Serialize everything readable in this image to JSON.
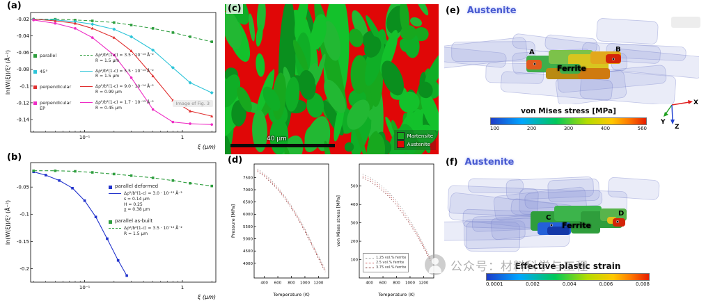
{
  "watermark": {
    "text": "公众号：材料科学与工程"
  },
  "panels": {
    "a": {
      "label": "(a)",
      "overlay_note": "Image of Fig. 3",
      "fits": [
        [
          "Δρ²/b²(1-c) = 3.5 · 10⁻¹⁴ Å⁻²",
          "R = 1.5 μm"
        ],
        [
          "Δρ²/b²(1-c) = 5.5 · 10⁻¹⁴ Å⁻²",
          "R = 1.5 μm"
        ],
        [
          "Δρ²/b²(1-c) = 9.0 · 10⁻¹⁴ Å⁻²",
          "R = 0.99 μm"
        ],
        [
          "Δρ²/b²(1-c) = 1.7 · 10⁻¹³ Å⁻²",
          "R = 0.45 μm"
        ]
      ]
    },
    "b": {
      "label": "(b)",
      "fits": [
        [
          "Δρ²/b²(1-c) = 3.0 · 10⁻¹³ Å⁻²",
          "s = 0.14 μm",
          "H = 0.25",
          "χ = 0.38 μm"
        ],
        [
          "Δρ²/b²(1-c) = 3.5 · 10⁻¹⁴ Å⁻²",
          "R = 1.5 μm"
        ]
      ]
    },
    "c": {
      "label": "(c)",
      "scalebar": "40 μm",
      "legend": [
        {
          "label": "Martensite",
          "color": "#17a81e"
        },
        {
          "label": "Austenite",
          "color": "#e00707"
        }
      ]
    },
    "d": {
      "label": "(d)"
    },
    "e": {
      "label": "(e)",
      "austenite": "Austenite",
      "ferrite": "Ferrite",
      "points": [
        "A",
        "B"
      ],
      "colorbar": {
        "title": "von Mises stress [MPa]",
        "ticks": [
          "100",
          "200",
          "300",
          "400",
          "560"
        ]
      },
      "axes": [
        "X",
        "Y",
        "Z"
      ]
    },
    "f": {
      "label": "(f)",
      "austenite": "Austenite",
      "ferrite": "Ferrite",
      "points": [
        "C",
        "D"
      ],
      "colorbar": {
        "title": "Effective plastic strain",
        "ticks": [
          "0.0001",
          "0.002",
          "0.004",
          "0.006",
          "0.008"
        ]
      }
    }
  },
  "chart_data": [
    {
      "id": "a",
      "type": "scatter",
      "xscale": "log",
      "xlabel": "ξ (μm)",
      "ylabel": "ln(W(ξ))/ξ² (Å⁻²)",
      "xlim": [
        0.028,
        2.2
      ],
      "ylim": [
        -0.155,
        -0.012
      ],
      "xticks": [
        {
          "v": 0.1,
          "label": "10⁻¹"
        },
        {
          "v": 1,
          "label": "1"
        }
      ],
      "yticks": [
        -0.02,
        -0.04,
        -0.06,
        -0.08,
        -0.1,
        -0.12,
        -0.14
      ],
      "x": [
        0.03,
        0.05,
        0.08,
        0.12,
        0.2,
        0.3,
        0.5,
        0.8,
        1.2,
        2.0
      ],
      "series": [
        {
          "name": "parallel",
          "color": "#2e9e3e",
          "dash": "5,3",
          "marker": "square",
          "y": [
            -0.02,
            -0.02,
            -0.021,
            -0.022,
            -0.024,
            -0.027,
            -0.031,
            -0.036,
            -0.041,
            -0.047
          ]
        },
        {
          "name": "45°",
          "color": "#2cc4d8",
          "dash": "",
          "marker": "diamond",
          "y": [
            -0.02,
            -0.021,
            -0.023,
            -0.026,
            -0.032,
            -0.041,
            -0.057,
            -0.078,
            -0.096,
            -0.108
          ]
        },
        {
          "name": "perpendicular",
          "color": "#e03030",
          "dash": "",
          "marker": "triangle",
          "y": [
            -0.02,
            -0.022,
            -0.025,
            -0.031,
            -0.042,
            -0.058,
            -0.088,
            -0.117,
            -0.13,
            -0.136
          ]
        },
        {
          "name": "perpendicular EP",
          "color": "#ee2cc4",
          "dash": "",
          "marker": "circle",
          "y": [
            -0.021,
            -0.025,
            -0.031,
            -0.042,
            -0.063,
            -0.09,
            -0.128,
            -0.143,
            -0.145,
            -0.146
          ]
        }
      ]
    },
    {
      "id": "b",
      "type": "scatter",
      "xscale": "log",
      "xlabel": "ξ (μm)",
      "ylabel": "ln(W(ξ))/ξ² (Å⁻²)",
      "xlim": [
        0.028,
        2.2
      ],
      "ylim": [
        -0.225,
        -0.005
      ],
      "xticks": [
        {
          "v": 0.1,
          "label": "10⁻¹"
        },
        {
          "v": 1,
          "label": "1"
        }
      ],
      "yticks": [
        -0.05,
        -0.1,
        -0.15,
        -0.2
      ],
      "series": [
        {
          "name": "parallel deformed",
          "color": "#2233cc",
          "dash": "",
          "marker": "square",
          "x": [
            0.03,
            0.04,
            0.055,
            0.075,
            0.1,
            0.13,
            0.17,
            0.22,
            0.27
          ],
          "y": [
            -0.022,
            -0.028,
            -0.038,
            -0.052,
            -0.075,
            -0.105,
            -0.145,
            -0.185,
            -0.213
          ]
        },
        {
          "name": "parallel as-built",
          "color": "#2e9e3e",
          "dash": "5,3",
          "marker": "square",
          "x": [
            0.03,
            0.05,
            0.08,
            0.12,
            0.2,
            0.3,
            0.5,
            0.8,
            1.2,
            2.0
          ],
          "y": [
            -0.02,
            -0.02,
            -0.021,
            -0.023,
            -0.026,
            -0.029,
            -0.033,
            -0.038,
            -0.043,
            -0.048
          ]
        }
      ]
    },
    {
      "id": "d_left",
      "type": "line",
      "xscale": "linear",
      "xlabel": "Temperature (K)",
      "ylabel": "Pressure [MPa]",
      "xlim": [
        250,
        1350
      ],
      "ylim": [
        3400,
        8050
      ],
      "xticks": [
        {
          "v": 400,
          "label": "400"
        },
        {
          "v": 600,
          "label": "600"
        },
        {
          "v": 800,
          "label": "800"
        },
        {
          "v": 1000,
          "label": "1000"
        },
        {
          "v": 1200,
          "label": "1200"
        }
      ],
      "yticks": [
        4000,
        4500,
        5000,
        5500,
        6000,
        6500,
        7000,
        7500
      ],
      "x": [
        300,
        400,
        500,
        600,
        700,
        800,
        900,
        1000,
        1100,
        1200,
        1300
      ],
      "series": [
        {
          "name": "1.25 vol.% ferrite",
          "color": "#999999",
          "dash": "1,3",
          "y": [
            7850,
            7650,
            7400,
            7100,
            6750,
            6350,
            5900,
            5400,
            4850,
            4300,
            3750
          ]
        },
        {
          "name": "2.5 vol.% ferrite",
          "color": "#cc5555",
          "dash": "1,3",
          "y": [
            7800,
            7600,
            7350,
            7050,
            6700,
            6300,
            5850,
            5350,
            4800,
            4250,
            3700
          ]
        },
        {
          "name": "3.75 vol.% ferrite",
          "color": "#7a1f1f",
          "dash": "1,3",
          "y": [
            7750,
            7550,
            7300,
            7000,
            6650,
            6250,
            5800,
            5300,
            4750,
            4200,
            3650
          ]
        }
      ]
    },
    {
      "id": "d_right",
      "type": "line",
      "xscale": "linear",
      "xlabel": "Temperature (K)",
      "ylabel": "von Mises stress [MPa]",
      "xlim": [
        250,
        1350
      ],
      "ylim": [
        0,
        620
      ],
      "xticks": [
        {
          "v": 400,
          "label": "400"
        },
        {
          "v": 600,
          "label": "600"
        },
        {
          "v": 800,
          "label": "800"
        },
        {
          "v": 1000,
          "label": "1000"
        },
        {
          "v": 1200,
          "label": "1200"
        }
      ],
      "yticks": [
        100,
        200,
        300,
        400,
        500
      ],
      "x": [
        300,
        400,
        500,
        600,
        700,
        800,
        900,
        1000,
        1100,
        1200,
        1300
      ],
      "series": [
        {
          "name": "1.25 vol.% ferrite",
          "color": "#999999",
          "dash": "1,3",
          "y": [
            565,
            548,
            525,
            495,
            460,
            418,
            368,
            312,
            250,
            182,
            110
          ]
        },
        {
          "name": "2.5 vol.% ferrite",
          "color": "#cc5555",
          "dash": "1,3",
          "y": [
            555,
            538,
            514,
            484,
            449,
            407,
            357,
            302,
            241,
            174,
            103
          ]
        },
        {
          "name": "3.75 vol.% ferrite",
          "color": "#7a1f1f",
          "dash": "1,3",
          "y": [
            545,
            527,
            503,
            473,
            438,
            396,
            346,
            292,
            232,
            166,
            96
          ]
        }
      ]
    }
  ]
}
